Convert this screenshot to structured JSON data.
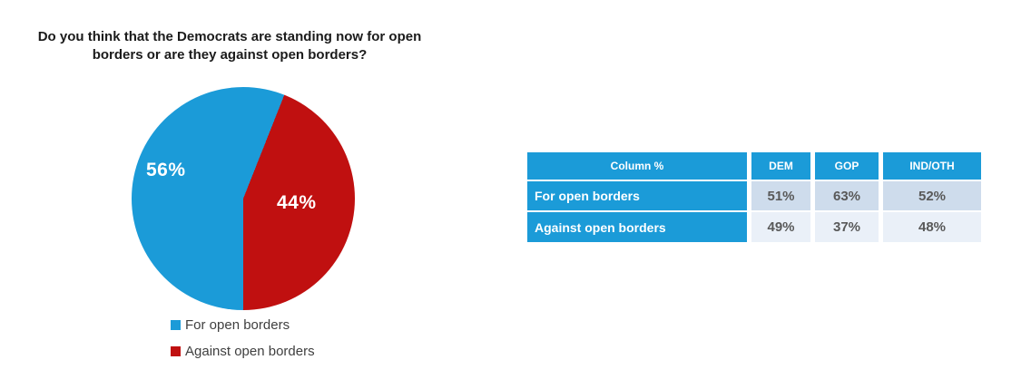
{
  "chart_data": [
    {
      "type": "pie",
      "title": "Do you think that the Democrats are standing now for open borders or are they against open borders?",
      "labels": [
        "For open borders",
        "Against open borders"
      ],
      "values": [
        56,
        44
      ],
      "value_labels": [
        "56%",
        "44%"
      ],
      "colors": [
        "#1b9bd8",
        "#c01010"
      ],
      "rotation_deg_clockwise_from_top": 21.6,
      "legend_position": "bottom"
    },
    {
      "type": "table",
      "columns": [
        "Column %",
        "DEM",
        "GOP",
        "IND/OTH"
      ],
      "rows": [
        [
          "For open borders",
          "51%",
          "63%",
          "52%"
        ],
        [
          "Against open borders",
          "49%",
          "37%",
          "48%"
        ]
      ]
    }
  ],
  "title": {
    "line1": "Do you think that the Democrats are standing now for open",
    "line2": "borders or are they against open borders?"
  },
  "colors": {
    "pie_blue": "#1b9bd8",
    "pie_red": "#c01010",
    "table_header_bg": "#1b9bd8",
    "table_band_row1": "#cedcec",
    "table_band_row2": "#eaf0f8",
    "value_text": "#595959",
    "legend_text": "#3f3f3f",
    "background": "#ffffff"
  }
}
